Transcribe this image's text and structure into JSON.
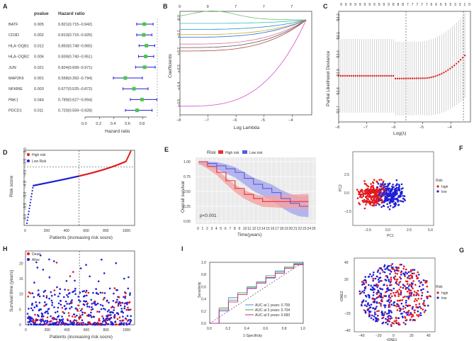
{
  "panels": {
    "A": {
      "label": "A",
      "headers": {
        "pvalue": "pvalue",
        "hr": "Hazard ratio"
      },
      "xlabel": "Hazard ratio",
      "xticks": [
        "0.0",
        "0.2",
        "0.4",
        "0.6",
        "0.8"
      ],
      "rows": [
        {
          "gene": "BATF",
          "p": "0.005",
          "hr": "0.821(0.715−0.942)",
          "est": 0.821,
          "lo": 0.715,
          "hi": 0.942
        },
        {
          "gene": "CD3D",
          "p": "0.002",
          "hr": "0.813(0.715−0.925)",
          "est": 0.813,
          "lo": 0.715,
          "hi": 0.925
        },
        {
          "gene": "HLA−DQB1",
          "p": "0.012",
          "hr": "0.850(0.748−0.965)",
          "est": 0.85,
          "lo": 0.748,
          "hi": 0.965
        },
        {
          "gene": "HLA−DQB2",
          "p": "0.006",
          "hr": "0.839(0.740−0.951)",
          "est": 0.839,
          "lo": 0.74,
          "hi": 0.951
        },
        {
          "gene": "JUN",
          "p": "0.021",
          "hr": "0.824(0.699−0.971)",
          "est": 0.824,
          "lo": 0.699,
          "hi": 0.971
        },
        {
          "gene": "MAP2K6",
          "p": "0.001",
          "hr": "0.558(0.392−0.794)",
          "est": 0.558,
          "lo": 0.392,
          "hi": 0.794
        },
        {
          "gene": "NFKBIE",
          "p": "0.003",
          "hr": "0.677(0.525−0.872)",
          "est": 0.677,
          "lo": 0.525,
          "hi": 0.872
        },
        {
          "gene": "PAK1",
          "p": "0.044",
          "hr": "0.789(0.627−0.994)",
          "est": 0.789,
          "lo": 0.627,
          "hi": 0.994
        },
        {
          "gene": "PDCD1",
          "p": "0.011",
          "hr": "0.720(0.559−0.928)",
          "est": 0.72,
          "lo": 0.559,
          "hi": 0.928
        }
      ]
    },
    "B": {
      "label": "B",
      "xlabel": "Log Lambda",
      "ylabel": "Coefficients",
      "xticks": [
        "−8",
        "−7",
        "−6",
        "−5",
        "−4"
      ],
      "yticks": [
        "0.0",
        "−0.1",
        "−0.2",
        "−0.3",
        "−0.4",
        "−0.5"
      ],
      "topticks": [
        "9",
        "9",
        "7",
        "7",
        "7"
      ]
    },
    "C": {
      "label": "C",
      "xlabel": "Log(λ)",
      "ylabel": "Partial Likelihood Deviance",
      "xticks": [
        "−8",
        "−7",
        "−6",
        "−5",
        "−4"
      ],
      "yticks": [
        "13.2",
        "13.1",
        "13.0",
        "12.9",
        "12.8",
        "12.7"
      ],
      "topticks": "9 9 9 9 9 9 9 9 9 9 9 8 8 8 7 7 7 7 7 6 6 6 5 5 3 3 1 0"
    },
    "D": {
      "label": "D",
      "xlabel": "Patients (increasing risk socre)",
      "ylabel": "Risk score",
      "legend": [
        "High risk",
        "Low Risk"
      ],
      "xticks": [
        "0",
        "200",
        "400",
        "600",
        "800",
        "1000"
      ],
      "yticks": [
        "−3.0",
        "−3.5",
        "−4.0",
        "−4.5",
        "−5.0",
        "−5.5",
        "−6.0"
      ]
    },
    "E": {
      "label": "E",
      "legend_title": "Risk",
      "legend": [
        "High risk",
        "Low risk"
      ],
      "xlabel": "Time(years)",
      "ylabel": "Overall survival",
      "pvalue": "p<0.001",
      "yticks": [
        "1.00",
        "0.75",
        "0.50",
        "0.25",
        "0.00"
      ],
      "xticks": [
        "0",
        "1",
        "2",
        "3",
        "4",
        "5",
        "6",
        "7",
        "8",
        "9",
        "10",
        "11",
        "12",
        "13",
        "14",
        "15",
        "16",
        "17",
        "18",
        "19",
        "20",
        "21",
        "22",
        "23",
        "24",
        "25"
      ]
    },
    "F": {
      "label": "F",
      "xlabel": "PC1",
      "ylabel": "PC2",
      "legend_title": "Risk",
      "legend": [
        "high",
        "low"
      ],
      "xticks": [
        "−2.5",
        "0.0",
        "2.5",
        "5.0"
      ],
      "yticks": [
        "2.5",
        "0.0",
        "−2.5"
      ]
    },
    "G": {
      "label": "G",
      "xlabel": "tSNE1",
      "ylabel": "tSNE2",
      "legend_title": "Risk",
      "legend": [
        "high",
        "low"
      ],
      "xticks": [
        "−40",
        "−20",
        "0",
        "20",
        "40"
      ],
      "yticks": [
        "40",
        "20",
        "0",
        "−20",
        "−40"
      ]
    },
    "H": {
      "label": "H",
      "xlabel": "Patients (increasing risk socre)",
      "ylabel": "Survival time (years)",
      "legend": [
        "Dead",
        "Alive"
      ],
      "xticks": [
        "0",
        "200",
        "400",
        "600",
        "800",
        "1000"
      ],
      "yticks": [
        "0",
        "5",
        "10",
        "15",
        "20"
      ]
    },
    "I": {
      "label": "I",
      "xlabel": "1-Specificity",
      "ylabel": "Sensitivity",
      "ticks": [
        "0.0",
        "0.2",
        "0.4",
        "0.6",
        "0.8",
        "1.0"
      ],
      "legend": [
        "AUC at 1 years: 0.709",
        "AUC at 3 years: 0.704",
        "AUC at 5 years: 0.683"
      ]
    }
  },
  "colors": {
    "high": "#e41a1c",
    "low": "#1f1fd6",
    "point": "#47c947",
    "ci": "#1f1fd6",
    "eHigh": "#e8333a",
    "eLow": "#5a5ade",
    "eHighFill": "#f4a3a3",
    "eLowFill": "#a6a6ee",
    "roc1": "#4a8de0",
    "roc3": "#3fae3f",
    "roc5": "#c9259a",
    "cv": "#d62020"
  },
  "chart_data": [
    {
      "type": "forest",
      "title": "A",
      "genes": [
        "BATF",
        "CD3D",
        "HLA-DQB1",
        "HLA-DQB2",
        "JUN",
        "MAP2K6",
        "NFKBIE",
        "PAK1",
        "PDCD1"
      ],
      "hazard_ratio": [
        0.821,
        0.813,
        0.85,
        0.839,
        0.824,
        0.558,
        0.677,
        0.789,
        0.72
      ],
      "ci_low": [
        0.715,
        0.715,
        0.748,
        0.74,
        0.699,
        0.392,
        0.525,
        0.627,
        0.559
      ],
      "ci_high": [
        0.942,
        0.925,
        0.965,
        0.951,
        0.971,
        0.794,
        0.872,
        0.994,
        0.928
      ],
      "pvalue": [
        0.005,
        0.002,
        0.012,
        0.006,
        0.021,
        0.001,
        0.003,
        0.044,
        0.011
      ],
      "xlim": [
        0,
        1.0
      ]
    },
    {
      "type": "line",
      "title": "B",
      "xlabel": "Log Lambda",
      "ylabel": "Coefficients",
      "xlim": [
        -8,
        -3.3
      ],
      "ylim": [
        -0.55,
        0.05
      ],
      "n_series": 9
    },
    {
      "type": "line",
      "title": "C",
      "xlabel": "Log(λ)",
      "ylabel": "Partial Likelihood Deviance",
      "xlim": [
        -8,
        -3.3
      ],
      "ylim": [
        12.65,
        13.25
      ],
      "lambda_min": -5.6,
      "series": [
        {
          "name": "deviance",
          "x": [
            -8,
            -7,
            -6,
            -5.6,
            -5,
            -4.5,
            -4,
            -3.5
          ],
          "y": [
            12.9,
            12.9,
            12.88,
            12.88,
            12.89,
            12.92,
            12.97,
            13.02
          ]
        }
      ]
    },
    {
      "type": "scatter",
      "title": "D",
      "xlabel": "Patients",
      "ylabel": "Risk score",
      "xlim": [
        0,
        1080
      ],
      "ylim": [
        -6.2,
        -2.8
      ],
      "cutoff_index": 530,
      "cutoff_score": -3.55
    },
    {
      "type": "line",
      "title": "E",
      "xlabel": "Time(years)",
      "ylabel": "Overall survival",
      "series": [
        {
          "name": "High risk",
          "x": [
            0,
            2,
            4,
            6,
            8,
            10,
            12,
            14,
            16,
            18,
            20,
            22,
            24
          ],
          "y": [
            1.0,
            0.92,
            0.82,
            0.68,
            0.55,
            0.45,
            0.38,
            0.33,
            0.33,
            0.33,
            0.33,
            0.33,
            0.33
          ]
        },
        {
          "name": "Low risk",
          "x": [
            0,
            2,
            4,
            6,
            8,
            10,
            12,
            14,
            16,
            18,
            20,
            22,
            24
          ],
          "y": [
            1.0,
            0.97,
            0.93,
            0.88,
            0.82,
            0.72,
            0.62,
            0.55,
            0.48,
            0.38,
            0.3,
            0.25,
            0.25
          ]
        }
      ],
      "xlim": [
        0,
        25
      ],
      "ylim": [
        0,
        1
      ]
    },
    {
      "type": "scatter",
      "title": "F",
      "xlabel": "PC1",
      "ylabel": "PC2",
      "xlim": [
        -4,
        6
      ],
      "ylim": [
        -4,
        5
      ]
    },
    {
      "type": "scatter",
      "title": "G",
      "xlabel": "tSNE1",
      "ylabel": "tSNE2",
      "xlim": [
        -45,
        45
      ],
      "ylim": [
        -45,
        45
      ]
    },
    {
      "type": "scatter",
      "title": "H",
      "xlabel": "Patients",
      "ylabel": "Survival time (years)",
      "xlim": [
        0,
        1080
      ],
      "ylim": [
        0,
        24
      ],
      "cutoff_index": 530
    },
    {
      "type": "line",
      "title": "I",
      "xlabel": "1-Specificity",
      "ylabel": "Sensitivity",
      "series": [
        {
          "name": "AUC at 1 years: 0.709",
          "x": [
            0,
            0.1,
            0.2,
            0.3,
            0.4,
            0.5,
            0.6,
            0.7,
            0.8,
            0.9,
            1
          ],
          "y": [
            0,
            0.2,
            0.42,
            0.5,
            0.58,
            0.66,
            0.74,
            0.86,
            0.92,
            0.98,
            1
          ]
        },
        {
          "name": "AUC at 3 years: 0.704",
          "x": [
            0,
            0.1,
            0.2,
            0.3,
            0.4,
            0.5,
            0.6,
            0.7,
            0.8,
            0.9,
            1
          ],
          "y": [
            0,
            0.25,
            0.38,
            0.5,
            0.6,
            0.68,
            0.78,
            0.84,
            0.92,
            0.97,
            1
          ]
        },
        {
          "name": "AUC at 5 years: 0.683",
          "x": [
            0,
            0.1,
            0.2,
            0.3,
            0.4,
            0.5,
            0.6,
            0.7,
            0.8,
            0.9,
            1
          ],
          "y": [
            0,
            0.22,
            0.35,
            0.47,
            0.57,
            0.66,
            0.75,
            0.82,
            0.9,
            0.96,
            1
          ]
        }
      ],
      "xlim": [
        0,
        1
      ],
      "ylim": [
        0,
        1
      ]
    }
  ]
}
